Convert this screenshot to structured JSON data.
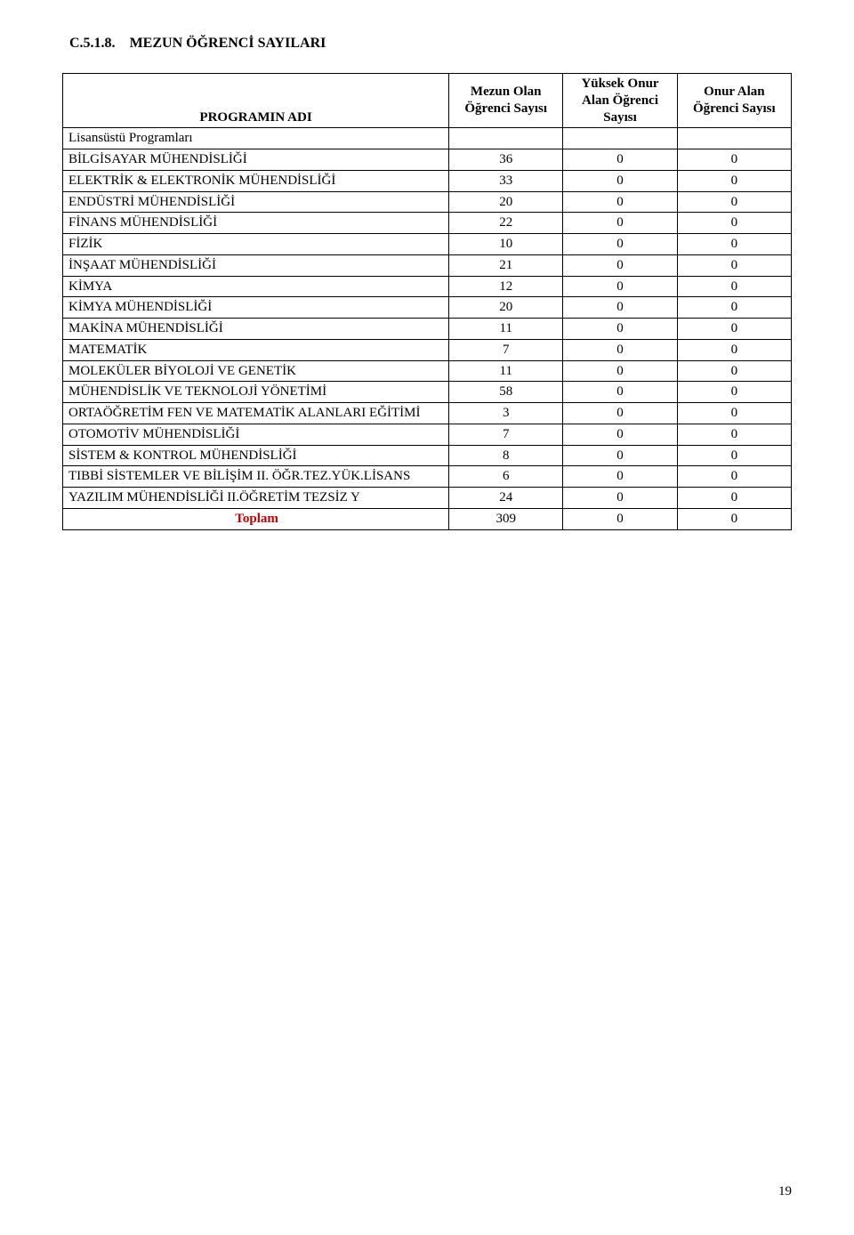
{
  "heading": {
    "number": "C.5.1.8.",
    "title": "MEZUN ÖĞRENCİ SAYILARI"
  },
  "columns": {
    "c0": "PROGRAMIN  ADI",
    "c1": "Mezun Olan Öğrenci Sayısı",
    "c2": "Yüksek Onur Alan Öğrenci Sayısı",
    "c3": "Onur Alan Öğrenci Sayısı"
  },
  "subheader": "Lisansüstü Programları",
  "rows": [
    {
      "name": "BİLGİSAYAR MÜHENDİSLİĞİ",
      "v1": "36",
      "v2": "0",
      "v3": "0"
    },
    {
      "name": "ELEKTRİK & ELEKTRONİK MÜHENDİSLİĞİ",
      "v1": "33",
      "v2": "0",
      "v3": "0"
    },
    {
      "name": "ENDÜSTRİ MÜHENDİSLİĞİ",
      "v1": "20",
      "v2": "0",
      "v3": "0"
    },
    {
      "name": "FİNANS MÜHENDİSLİĞİ",
      "v1": "22",
      "v2": "0",
      "v3": "0"
    },
    {
      "name": "FİZİK",
      "v1": "10",
      "v2": "0",
      "v3": "0"
    },
    {
      "name": "İNŞAAT MÜHENDİSLİĞİ",
      "v1": "21",
      "v2": "0",
      "v3": "0"
    },
    {
      "name": "KİMYA",
      "v1": "12",
      "v2": "0",
      "v3": "0"
    },
    {
      "name": "KİMYA MÜHENDİSLİĞİ",
      "v1": "20",
      "v2": "0",
      "v3": "0"
    },
    {
      "name": "MAKİNA MÜHENDİSLİĞİ",
      "v1": "11",
      "v2": "0",
      "v3": "0"
    },
    {
      "name": "MATEMATİK",
      "v1": "7",
      "v2": "0",
      "v3": "0"
    },
    {
      "name": "MOLEKÜLER BİYOLOJİ VE GENETİK",
      "v1": "11",
      "v2": "0",
      "v3": "0"
    },
    {
      "name": "MÜHENDİSLİK VE TEKNOLOJİ YÖNETİMİ",
      "v1": "58",
      "v2": "0",
      "v3": "0"
    },
    {
      "name": "ORTAÖĞRETİM FEN VE MATEMATİK ALANLARI EĞİTİMİ",
      "v1": "3",
      "v2": "0",
      "v3": "0"
    },
    {
      "name": "OTOMOTİV MÜHENDİSLİĞİ",
      "v1": "7",
      "v2": "0",
      "v3": "0"
    },
    {
      "name": "SİSTEM & KONTROL MÜHENDİSLİĞİ",
      "v1": "8",
      "v2": "0",
      "v3": "0"
    },
    {
      "name": "TIBBİ SİSTEMLER VE BİLİŞİM II. ÖĞR.TEZ.YÜK.LİSANS",
      "v1": "6",
      "v2": "0",
      "v3": "0"
    },
    {
      "name": "YAZILIM MÜHENDİSLİĞİ II.ÖĞRETİM TEZSİZ Y",
      "v1": "24",
      "v2": "0",
      "v3": "0"
    }
  ],
  "total": {
    "label": "Toplam",
    "v1": "309",
    "v2": "0",
    "v3": "0"
  },
  "pageNumber": "19",
  "colors": {
    "text": "#000000",
    "border": "#000000",
    "totalLabel": "#c00000",
    "background": "#ffffff"
  }
}
